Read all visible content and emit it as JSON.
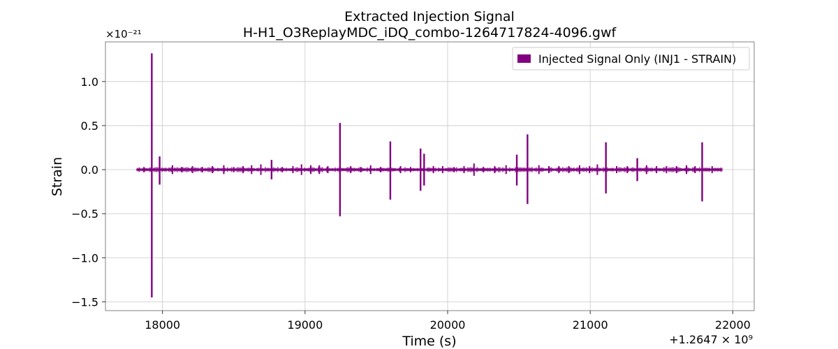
{
  "chart_data": {
    "type": "line",
    "title": "Extracted Injection Signal",
    "subtitle": "H-H1_O3ReplayMDC_iDQ_combo-1264717824-4096.gwf",
    "xlabel": "Time (s)",
    "ylabel": "Strain",
    "x_offset_label": "+1.2647 × 10⁹",
    "y_scale_label": "×10⁻²¹",
    "xlim": [
      17600,
      22150
    ],
    "ylim": [
      -1.6,
      1.45
    ],
    "x_ticks": [
      18000,
      19000,
      20000,
      21000,
      22000
    ],
    "x_tick_labels": [
      "18000",
      "19000",
      "20000",
      "21000",
      "22000"
    ],
    "y_ticks": [
      1.0,
      0.5,
      0.0,
      -0.5,
      -1.0,
      -1.5
    ],
    "y_tick_labels": [
      "1.0",
      "0.5",
      "0.0",
      "−0.5",
      "−1.0",
      "−1.5"
    ],
    "grid": true,
    "legend_position": "top-right",
    "series": [
      {
        "name": "Injected Signal Only (INJ1 - STRAIN)",
        "color": "#800080",
        "x_range": [
          17820,
          21925
        ],
        "baseline_band": [
          -0.012,
          0.012
        ],
        "spikes": [
          {
            "x": 17925,
            "max": 1.32,
            "min": -1.45
          },
          {
            "x": 17980,
            "max": 0.15,
            "min": -0.17
          },
          {
            "x": 18765,
            "max": 0.11,
            "min": -0.11
          },
          {
            "x": 19245,
            "max": 0.53,
            "min": -0.53
          },
          {
            "x": 19598,
            "max": 0.32,
            "min": -0.34
          },
          {
            "x": 19810,
            "max": 0.24,
            "min": -0.24
          },
          {
            "x": 19835,
            "max": 0.18,
            "min": -0.18
          },
          {
            "x": 20485,
            "max": 0.17,
            "min": -0.18
          },
          {
            "x": 20560,
            "max": 0.4,
            "min": -0.39
          },
          {
            "x": 21110,
            "max": 0.31,
            "min": -0.27
          },
          {
            "x": 21330,
            "max": 0.13,
            "min": -0.13
          },
          {
            "x": 21785,
            "max": 0.31,
            "min": -0.36
          }
        ],
        "minor_glitches": [
          {
            "x": 17870,
            "amp": 0.03
          },
          {
            "x": 18070,
            "amp": 0.05
          },
          {
            "x": 18135,
            "amp": 0.03
          },
          {
            "x": 18210,
            "amp": 0.04
          },
          {
            "x": 18280,
            "amp": 0.03
          },
          {
            "x": 18350,
            "amp": 0.04
          },
          {
            "x": 18430,
            "amp": 0.05
          },
          {
            "x": 18500,
            "amp": 0.03
          },
          {
            "x": 18565,
            "amp": 0.04
          },
          {
            "x": 18625,
            "amp": 0.05
          },
          {
            "x": 18690,
            "amp": 0.06
          },
          {
            "x": 18840,
            "amp": 0.03
          },
          {
            "x": 18915,
            "amp": 0.04
          },
          {
            "x": 18975,
            "amp": 0.06
          },
          {
            "x": 19040,
            "amp": 0.05
          },
          {
            "x": 19100,
            "amp": 0.05
          },
          {
            "x": 19160,
            "amp": 0.04
          },
          {
            "x": 19320,
            "amp": 0.04
          },
          {
            "x": 19390,
            "amp": 0.03
          },
          {
            "x": 19460,
            "amp": 0.05
          },
          {
            "x": 19530,
            "amp": 0.03
          },
          {
            "x": 19670,
            "amp": 0.04
          },
          {
            "x": 19740,
            "amp": 0.03
          },
          {
            "x": 19900,
            "amp": 0.04
          },
          {
            "x": 19965,
            "amp": 0.04
          },
          {
            "x": 20045,
            "amp": 0.03
          },
          {
            "x": 20115,
            "amp": 0.04
          },
          {
            "x": 20185,
            "amp": 0.07
          },
          {
            "x": 20250,
            "amp": 0.03
          },
          {
            "x": 20330,
            "amp": 0.04
          },
          {
            "x": 20410,
            "amp": 0.05
          },
          {
            "x": 20640,
            "amp": 0.05
          },
          {
            "x": 20710,
            "amp": 0.04
          },
          {
            "x": 20780,
            "amp": 0.04
          },
          {
            "x": 20850,
            "amp": 0.04
          },
          {
            "x": 20925,
            "amp": 0.05
          },
          {
            "x": 20995,
            "amp": 0.04
          },
          {
            "x": 21050,
            "amp": 0.06
          },
          {
            "x": 21185,
            "amp": 0.04
          },
          {
            "x": 21260,
            "amp": 0.04
          },
          {
            "x": 21395,
            "amp": 0.05
          },
          {
            "x": 21465,
            "amp": 0.04
          },
          {
            "x": 21535,
            "amp": 0.04
          },
          {
            "x": 21605,
            "amp": 0.04
          },
          {
            "x": 21675,
            "amp": 0.05
          },
          {
            "x": 21735,
            "amp": 0.04
          },
          {
            "x": 21855,
            "amp": 0.04
          }
        ]
      }
    ]
  }
}
